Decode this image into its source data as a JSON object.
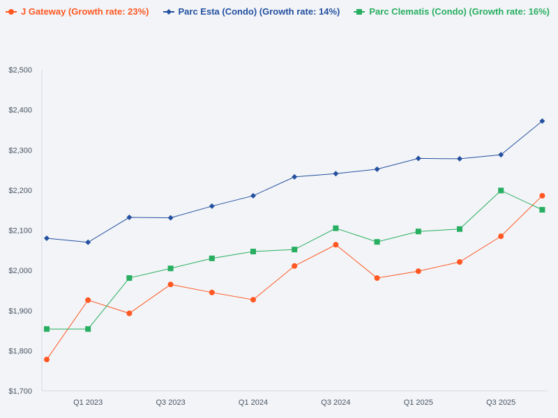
{
  "chart_data": {
    "type": "line",
    "title": "",
    "xlabel": "",
    "ylabel": "",
    "ylim": [
      1700,
      2500
    ],
    "yticks": [
      "$1,700",
      "$1,800",
      "$1,900",
      "$2,000",
      "$2,100",
      "$2,200",
      "$2,300",
      "$2,400",
      "$2,500"
    ],
    "ytick_values": [
      1700,
      1800,
      1900,
      2000,
      2100,
      2200,
      2300,
      2400,
      2500
    ],
    "x": [
      "Q4 2022",
      "Q1 2023",
      "Q2 2023",
      "Q3 2023",
      "Q4 2023",
      "Q1 2024",
      "Q2 2024",
      "Q3 2024",
      "Q4 2024",
      "Q1 2025",
      "Q2 2025",
      "Q3 2025",
      "Q4 2025"
    ],
    "xtick_labels": [
      "Q1 2023",
      "Q3 2023",
      "Q1 2024",
      "Q3 2024",
      "Q1 2025",
      "Q3 2025"
    ],
    "xtick_indices": [
      1,
      3,
      5,
      7,
      9,
      11
    ],
    "legend_position": "top-left",
    "grid": false,
    "series": [
      {
        "name": "J Gateway (Growth rate: 23%)",
        "color": "#ff5722",
        "marker": "circle",
        "values": [
          1778,
          1926,
          1893,
          1965,
          1945,
          1927,
          2011,
          2064,
          1981,
          1998,
          2021,
          2085,
          2186
        ]
      },
      {
        "name": "Parc Esta (Condo) (Growth rate: 14%)",
        "color": "#2450a0",
        "marker": "diamond",
        "values": [
          2080,
          2070,
          2132,
          2131,
          2160,
          2186,
          2233,
          2241,
          2252,
          2279,
          2278,
          2288,
          2372
        ]
      },
      {
        "name": "Parc Clematis (Condo) (Growth rate: 16%)",
        "color": "#27ae60",
        "marker": "square",
        "values": [
          1854,
          1854,
          1981,
          2005,
          2030,
          2047,
          2052,
          2105,
          2071,
          2097,
          2103,
          2199,
          2151
        ]
      }
    ]
  }
}
